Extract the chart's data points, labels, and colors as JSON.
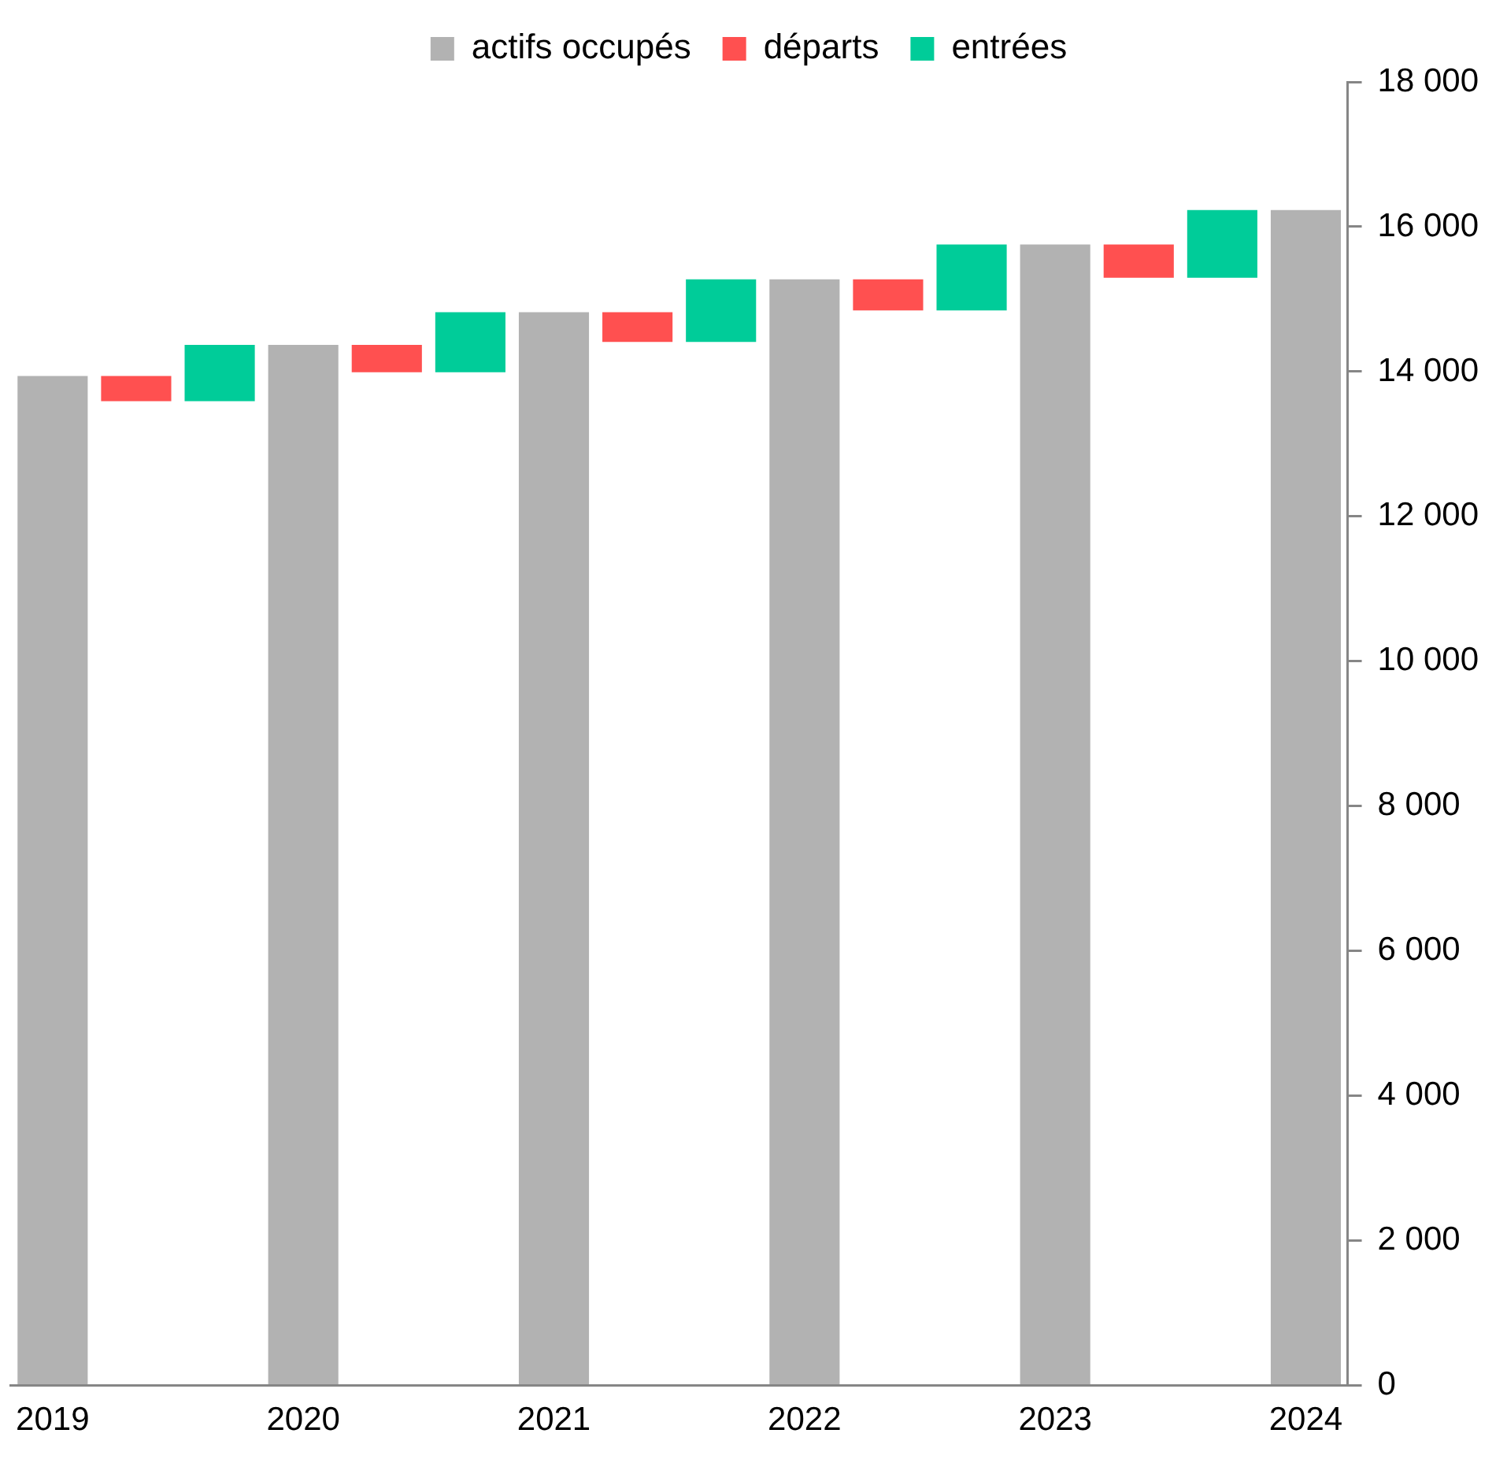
{
  "chart_data": {
    "type": "bar",
    "categories": [
      "2019",
      null,
      null,
      "2020",
      null,
      null,
      "2021",
      null,
      null,
      "2022",
      null,
      null,
      "2023",
      null,
      null,
      "2024"
    ],
    "series": [
      {
        "name": "actifs occupés",
        "color": "#b2b2b2",
        "values": [
          13940,
          null,
          null,
          14370,
          null,
          null,
          14820,
          null,
          null,
          15275,
          null,
          null,
          15755,
          null,
          null,
          16230
        ]
      },
      {
        "name": "départs",
        "color": "#ff5050",
        "base": [
          null,
          13590,
          null,
          null,
          13990,
          null,
          null,
          14410,
          null,
          null,
          14845,
          null,
          null,
          15295,
          null,
          null
        ],
        "values": [
          null,
          350,
          null,
          null,
          380,
          null,
          null,
          410,
          null,
          null,
          430,
          null,
          null,
          460,
          null,
          null
        ]
      },
      {
        "name": "entrées",
        "color": "#00cc99",
        "base": [
          null,
          null,
          13590,
          null,
          null,
          13990,
          null,
          null,
          14410,
          null,
          null,
          14845,
          null,
          null,
          15295,
          null
        ],
        "values": [
          null,
          null,
          780,
          null,
          null,
          830,
          null,
          null,
          865,
          null,
          null,
          910,
          null,
          null,
          935,
          null
        ]
      }
    ],
    "ylim": [
      0,
      18000
    ],
    "yticks": [
      0,
      {
        "value": 2000,
        "label": "2 000"
      },
      {
        "value": 4000,
        "label": "4 000"
      },
      {
        "value": 6000,
        "label": "6 000"
      },
      {
        "value": 8000,
        "label": "8 000"
      },
      {
        "value": 10000,
        "label": "10 000"
      },
      {
        "value": 12000,
        "label": "12 000"
      },
      {
        "value": 14000,
        "label": "14 000"
      },
      {
        "value": 16000,
        "label": "16 000"
      },
      {
        "value": 18000,
        "label": "18 000"
      }
    ],
    "legend": "top",
    "grid": false
  }
}
